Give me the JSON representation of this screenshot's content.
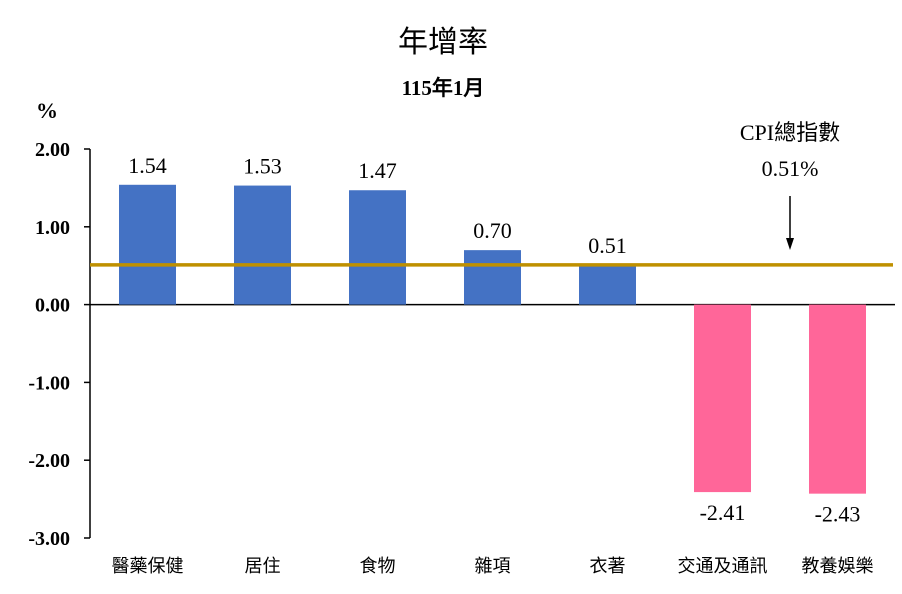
{
  "chart_data": {
    "type": "bar",
    "title": "年增率",
    "subtitle": "115年1月",
    "ylabel": "%",
    "ylim": [
      -3,
      2
    ],
    "yticks": [
      "2.00",
      "1.00",
      "0.00",
      "-1.00",
      "-2.00",
      "-3.00"
    ],
    "categories": [
      "醫藥保健",
      "居住",
      "食物",
      "雜項",
      "衣著",
      "交通及通訊",
      "教養娛樂"
    ],
    "values": [
      1.54,
      1.53,
      1.47,
      0.7,
      0.51,
      -2.41,
      -2.43
    ],
    "value_labels": [
      "1.54",
      "1.53",
      "1.47",
      "0.70",
      "0.51",
      "-2.41",
      "-2.43"
    ],
    "reference_line": {
      "value": 0.51,
      "label_line1": "CPI總指數",
      "label_line2": "0.51%"
    },
    "grid": false,
    "legend": "none",
    "colors": {
      "positive": "#4472c4",
      "negative": "#ff6699",
      "reference": "#bf9000",
      "axis": "#000000"
    }
  }
}
